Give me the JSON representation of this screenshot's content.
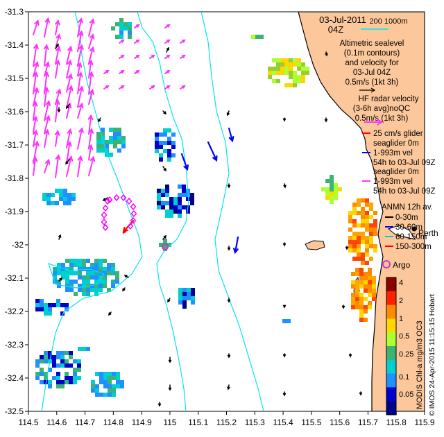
{
  "header": {
    "date": "03-Jul-2011",
    "hour": "04Z",
    "depth_scale": "200  1000m"
  },
  "legend": {
    "altimetry": [
      "Altimetric sealevel",
      "(0.1m contours)",
      "and velocity for",
      "03-Jul 04Z",
      "0.5m/s (1kt 3h)"
    ],
    "hf_radar": [
      "HF radar velocity",
      "(3-6h avg)noQC",
      "0.5m/s (1kt 3h)"
    ],
    "glider": [
      "25 cm/s glider",
      "seaglider 0m",
      "1-993m vel",
      "54h to 03-Jul 09Z",
      "seaglider 0m",
      "1-993m vel",
      "54h to 03-Jul 09Z"
    ],
    "anmn_title": "ANMN 12h av.",
    "anmn_items": [
      {
        "label": "0-30m",
        "color": "#000000"
      },
      {
        "label": "30-60m",
        "color": "#0000ff"
      },
      {
        "label": "60-150m",
        "color": "#00cccc"
      },
      {
        "label": "150-300m",
        "color": "#ff0000"
      }
    ],
    "argo": "Argo",
    "city": "Perth",
    "credit": "Hobart"
  },
  "colorbar": {
    "title": "MODIS Chl-a mg/m3 OC3",
    "ticks": [
      "4",
      "2",
      "1",
      "0.5",
      "0.25",
      "0.1",
      "0.05"
    ],
    "colors": [
      "#8b0000",
      "#ff2000",
      "#ff8c00",
      "#ffd700",
      "#adff2f",
      "#3cb371",
      "#00ced1",
      "#1e90ff",
      "#0000cd",
      "#00008b"
    ]
  },
  "credit_line": "© IMOS 24-Apr-2015 11:15:15 Hobart",
  "axes": {
    "x_ticks": [
      "114.5",
      "114.6",
      "114.7",
      "114.8",
      "114.9",
      "115",
      "115.1",
      "115.2",
      "115.3",
      "115.4",
      "115.5",
      "115.6",
      "115.7",
      "115.8",
      "115.9"
    ],
    "y_ticks": [
      "-31.3",
      "-31.4",
      "-31.5",
      "-31.6",
      "-31.7",
      "-31.8",
      "-31.9",
      "-32",
      "-32.1",
      "-32.2",
      "-32.3",
      "-32.4",
      "-32.5"
    ],
    "x_range": [
      114.5,
      115.9
    ],
    "y_range": [
      -32.5,
      -31.3
    ]
  },
  "colors": {
    "land": "#fcc89b",
    "coast": "#000000",
    "isobath": "#00e5ee",
    "hf_radar": "#ff33ff",
    "altimetry": "#000000",
    "glider": "#ff0000",
    "argo": "#cc33cc"
  }
}
